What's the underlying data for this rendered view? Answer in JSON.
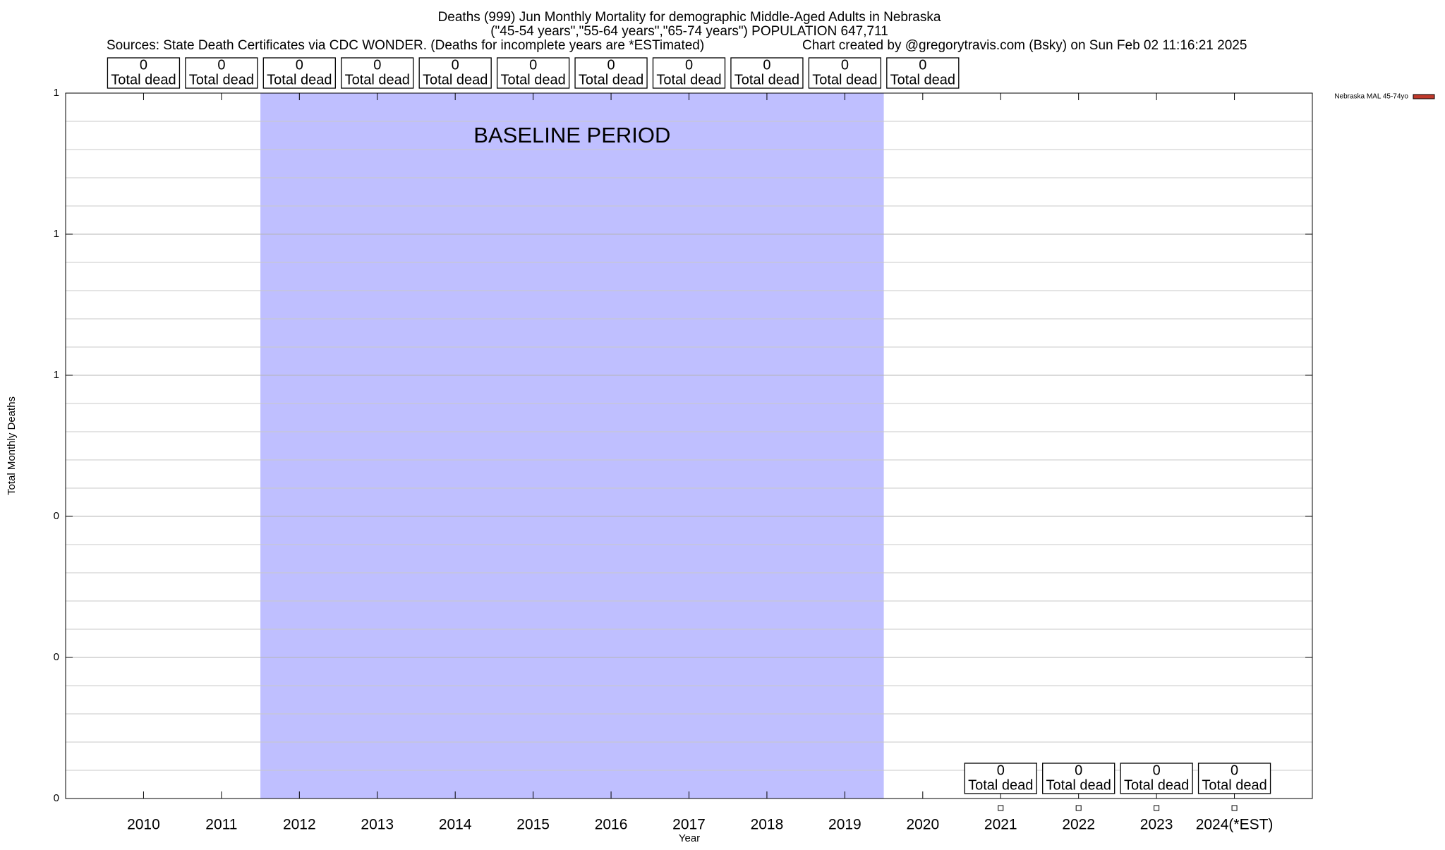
{
  "chart_data": {
    "type": "bar",
    "title": "Deaths (999) Jun Monthly Mortality for demographic Middle-Aged Adults in Nebraska",
    "subtitle": "(\"45-54 years\",\"55-64 years\",\"65-74 years\") POPULATION 647,711",
    "sources": "Sources: State Death Certificates via CDC WONDER. (Deaths for incomplete years are *ESTimated)",
    "credit": "Chart created by @gregorytravis.com (Bsky) on Sun Feb 02 11:16:21 2025",
    "x_label": "Year",
    "y_label": "Total Monthly Deaths",
    "categories": [
      "2010",
      "2011",
      "2012",
      "2013",
      "2014",
      "2015",
      "2016",
      "2017",
      "2018",
      "2019",
      "2020",
      "2021",
      "2022",
      "2023",
      "2024(*EST)"
    ],
    "series": [
      {
        "name": "Nebraska MAL 45-74yo",
        "color": "#c0392b",
        "values": [
          0,
          0,
          0,
          0,
          0,
          0,
          0,
          0,
          0,
          0,
          0,
          0,
          0,
          0,
          0
        ]
      }
    ],
    "value_label_unit": "Total dead",
    "label_rows": [
      "top",
      "top",
      "top",
      "top",
      "top",
      "top",
      "top",
      "top",
      "top",
      "top",
      "top",
      "bottom",
      "bottom",
      "bottom",
      "bottom"
    ],
    "annotations": [
      {
        "text": "BASELINE PERIOD",
        "start": "2012",
        "end": "2019",
        "color": "#bfbfff"
      }
    ],
    "ylim": [
      0,
      1
    ],
    "yticks": [
      {
        "value": 0,
        "label": "0"
      },
      {
        "value": 0.2,
        "label": "0"
      },
      {
        "value": 0.4,
        "label": "0"
      },
      {
        "value": 0.6,
        "label": "1"
      },
      {
        "value": 0.8,
        "label": "1"
      },
      {
        "value": 1,
        "label": "1"
      }
    ],
    "minor_yticks": [
      0.04,
      0.08,
      0.12,
      0.16,
      0.24,
      0.28,
      0.32,
      0.36,
      0.44,
      0.48,
      0.52,
      0.56,
      0.64,
      0.68,
      0.72,
      0.76,
      0.84,
      0.88,
      0.92,
      0.96
    ],
    "grid": true,
    "legend": "top-right"
  }
}
